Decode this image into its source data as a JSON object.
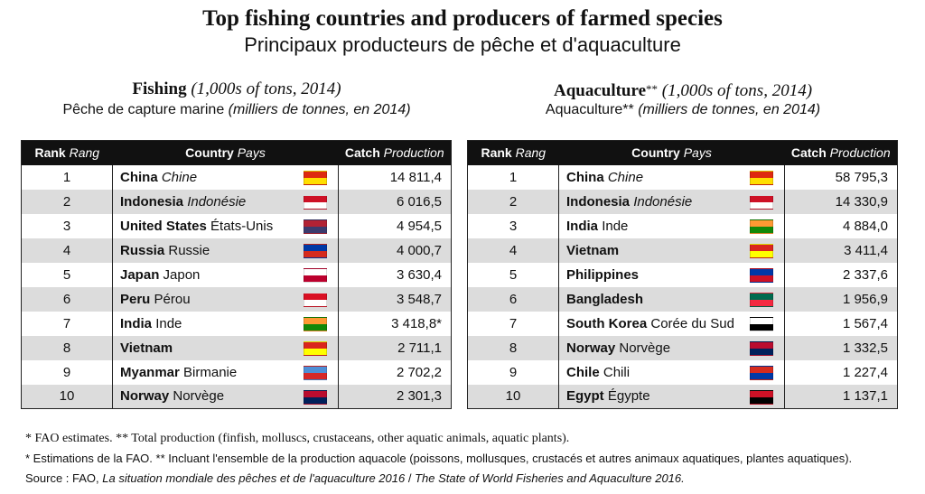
{
  "title_en": "Top fishing countries and producers of farmed species",
  "title_fr": "Principaux producteurs de pêche et d'aquaculture",
  "fishing": {
    "head_en_bold": "Fishing",
    "head_en_italic": "(1,000s of tons, 2014)",
    "head_fr": "Pêche de capture marine",
    "head_fr_italic": "(milliers de tonnes, en 2014)",
    "col_rank": "Rank",
    "col_rank_fr": "Rang",
    "col_country": "Country",
    "col_country_fr": "Pays",
    "col_catch": "Catch",
    "col_catch_fr": "Production",
    "rows": [
      {
        "rank": "1",
        "en": "China",
        "fr": "Chine",
        "fr_italic": true,
        "value": "14 811,4",
        "flag": "china-flag-icon",
        "c1": "#de2910",
        "c2": "#ffde00"
      },
      {
        "rank": "2",
        "en": "Indonesia",
        "fr": "Indonésie",
        "fr_italic": true,
        "value": "6 016,5",
        "flag": "indonesia-flag-icon",
        "c1": "#ce1126",
        "c2": "#ffffff"
      },
      {
        "rank": "3",
        "en": "United States",
        "fr": "États-Unis",
        "fr_italic": false,
        "value": "4 954,5",
        "flag": "usa-flag-icon",
        "c1": "#b22234",
        "c2": "#3c3b6e"
      },
      {
        "rank": "4",
        "en": "Russia",
        "fr": "Russie",
        "fr_italic": false,
        "value": "4 000,7",
        "flag": "russia-flag-icon",
        "c1": "#0039a6",
        "c2": "#d52b1e"
      },
      {
        "rank": "5",
        "en": "Japan",
        "fr": "Japon",
        "fr_italic": false,
        "value": "3 630,4",
        "flag": "japan-flag-icon",
        "c1": "#ffffff",
        "c2": "#bc002d"
      },
      {
        "rank": "6",
        "en": "Peru",
        "fr": "Pérou",
        "fr_italic": false,
        "value": "3 548,7",
        "flag": "peru-flag-icon",
        "c1": "#d91023",
        "c2": "#ffffff"
      },
      {
        "rank": "7",
        "en": "India",
        "fr": "Inde",
        "fr_italic": false,
        "value": "3 418,8*",
        "flag": "india-flag-icon",
        "c1": "#ff9933",
        "c2": "#138808"
      },
      {
        "rank": "8",
        "en": "Vietnam",
        "fr": "",
        "fr_italic": false,
        "value": "2 711,1",
        "flag": "vietnam-flag-icon",
        "c1": "#da251d",
        "c2": "#ffff00"
      },
      {
        "rank": "9",
        "en": "Myanmar",
        "fr": "Birmanie",
        "fr_italic": false,
        "value": "2 702,2",
        "flag": "myanmar-flag-icon",
        "c1": "#4e8fd6",
        "c2": "#d62828"
      },
      {
        "rank": "10",
        "en": "Norway",
        "fr": "Norvège",
        "fr_italic": false,
        "value": "2 301,3",
        "flag": "norway-flag-icon",
        "c1": "#ba0c2f",
        "c2": "#00205b"
      }
    ]
  },
  "aquaculture": {
    "head_en_bold": "Aquaculture",
    "head_en_sup": "**",
    "head_en_italic": "(1,000s of tons, 2014)",
    "head_fr": "Aquaculture",
    "head_fr_sup": "**",
    "head_fr_italic": "(milliers de tonnes, en 2014)",
    "col_rank": "Rank",
    "col_rank_fr": "Rang",
    "col_country": "Country",
    "col_country_fr": "Pays",
    "col_catch": "Catch",
    "col_catch_fr": "Production",
    "rows": [
      {
        "rank": "1",
        "en": "China",
        "fr": "Chine",
        "fr_italic": true,
        "value": "58 795,3",
        "flag": "china-flag-icon",
        "c1": "#de2910",
        "c2": "#ffde00"
      },
      {
        "rank": "2",
        "en": "Indonesia",
        "fr": "Indonésie",
        "fr_italic": true,
        "value": "14 330,9",
        "flag": "indonesia-flag-icon",
        "c1": "#ce1126",
        "c2": "#ffffff"
      },
      {
        "rank": "3",
        "en": "India",
        "fr": "Inde",
        "fr_italic": false,
        "value": "4 884,0",
        "flag": "india-flag-icon",
        "c1": "#ff9933",
        "c2": "#138808"
      },
      {
        "rank": "4",
        "en": "Vietnam",
        "fr": "",
        "fr_italic": false,
        "value": "3 411,4",
        "flag": "vietnam-flag-icon",
        "c1": "#da251d",
        "c2": "#ffff00"
      },
      {
        "rank": "5",
        "en": "Philippines",
        "fr": "",
        "fr_italic": false,
        "value": "2 337,6",
        "flag": "philippines-flag-icon",
        "c1": "#0038a8",
        "c2": "#ce1126"
      },
      {
        "rank": "6",
        "en": "Bangladesh",
        "fr": "",
        "fr_italic": false,
        "value": "1 956,9",
        "flag": "bangladesh-flag-icon",
        "c1": "#006a4e",
        "c2": "#f42a41"
      },
      {
        "rank": "7",
        "en": "South Korea",
        "fr": "Corée du Sud",
        "fr_italic": false,
        "value": "1 567,4",
        "flag": "south-korea-flag-icon",
        "c1": "#ffffff",
        "c2": "#000000"
      },
      {
        "rank": "8",
        "en": "Norway",
        "fr": "Norvège",
        "fr_italic": false,
        "value": "1 332,5",
        "flag": "norway-flag-icon",
        "c1": "#ba0c2f",
        "c2": "#00205b"
      },
      {
        "rank": "9",
        "en": "Chile",
        "fr": "Chili",
        "fr_italic": false,
        "value": "1 227,4",
        "flag": "chile-flag-icon",
        "c1": "#d52b1e",
        "c2": "#0039a6"
      },
      {
        "rank": "10",
        "en": "Egypt",
        "fr": "Égypte",
        "fr_italic": false,
        "value": "1 137,1",
        "flag": "egypt-flag-icon",
        "c1": "#ce1126",
        "c2": "#000000"
      }
    ]
  },
  "notes": {
    "line1": "* FAO estimates.   ** Total production (finfish, molluscs, crustaceans, other aquatic animals, aquatic plants).",
    "line2": "* Estimations de la FAO.   ** Incluant l'ensemble de la production aquacole (poissons, mollusques, crustacés et autres animaux aquatiques, plantes aquatiques).",
    "line3_prefix": "Source : FAO, ",
    "line3_italic1": "La situation mondiale des pêches et de l'aquaculture 2016",
    "line3_sep": " / ",
    "line3_italic2": "The State of World Fisheries and Aquaculture 2016."
  }
}
